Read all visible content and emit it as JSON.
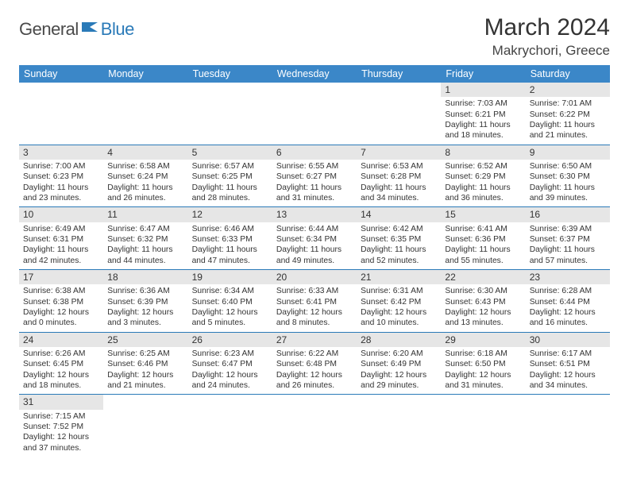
{
  "logo": {
    "part1": "General",
    "part2": "Blue"
  },
  "title": "March 2024",
  "location": "Makrychori, Greece",
  "colors": {
    "header_bg": "#3b87c8",
    "header_text": "#ffffff",
    "border": "#2a7ab8",
    "daynum_bg": "#e6e6e6",
    "logo_blue": "#2a7ab8",
    "logo_gray": "#4a4a4a"
  },
  "weekdays": [
    "Sunday",
    "Monday",
    "Tuesday",
    "Wednesday",
    "Thursday",
    "Friday",
    "Saturday"
  ],
  "weeks": [
    [
      {
        "empty": true
      },
      {
        "empty": true
      },
      {
        "empty": true
      },
      {
        "empty": true
      },
      {
        "empty": true
      },
      {
        "day": "1",
        "sunrise": "7:03 AM",
        "sunset": "6:21 PM",
        "daylight": "11 hours and 18 minutes."
      },
      {
        "day": "2",
        "sunrise": "7:01 AM",
        "sunset": "6:22 PM",
        "daylight": "11 hours and 21 minutes."
      }
    ],
    [
      {
        "day": "3",
        "sunrise": "7:00 AM",
        "sunset": "6:23 PM",
        "daylight": "11 hours and 23 minutes."
      },
      {
        "day": "4",
        "sunrise": "6:58 AM",
        "sunset": "6:24 PM",
        "daylight": "11 hours and 26 minutes."
      },
      {
        "day": "5",
        "sunrise": "6:57 AM",
        "sunset": "6:25 PM",
        "daylight": "11 hours and 28 minutes."
      },
      {
        "day": "6",
        "sunrise": "6:55 AM",
        "sunset": "6:27 PM",
        "daylight": "11 hours and 31 minutes."
      },
      {
        "day": "7",
        "sunrise": "6:53 AM",
        "sunset": "6:28 PM",
        "daylight": "11 hours and 34 minutes."
      },
      {
        "day": "8",
        "sunrise": "6:52 AM",
        "sunset": "6:29 PM",
        "daylight": "11 hours and 36 minutes."
      },
      {
        "day": "9",
        "sunrise": "6:50 AM",
        "sunset": "6:30 PM",
        "daylight": "11 hours and 39 minutes."
      }
    ],
    [
      {
        "day": "10",
        "sunrise": "6:49 AM",
        "sunset": "6:31 PM",
        "daylight": "11 hours and 42 minutes."
      },
      {
        "day": "11",
        "sunrise": "6:47 AM",
        "sunset": "6:32 PM",
        "daylight": "11 hours and 44 minutes."
      },
      {
        "day": "12",
        "sunrise": "6:46 AM",
        "sunset": "6:33 PM",
        "daylight": "11 hours and 47 minutes."
      },
      {
        "day": "13",
        "sunrise": "6:44 AM",
        "sunset": "6:34 PM",
        "daylight": "11 hours and 49 minutes."
      },
      {
        "day": "14",
        "sunrise": "6:42 AM",
        "sunset": "6:35 PM",
        "daylight": "11 hours and 52 minutes."
      },
      {
        "day": "15",
        "sunrise": "6:41 AM",
        "sunset": "6:36 PM",
        "daylight": "11 hours and 55 minutes."
      },
      {
        "day": "16",
        "sunrise": "6:39 AM",
        "sunset": "6:37 PM",
        "daylight": "11 hours and 57 minutes."
      }
    ],
    [
      {
        "day": "17",
        "sunrise": "6:38 AM",
        "sunset": "6:38 PM",
        "daylight": "12 hours and 0 minutes."
      },
      {
        "day": "18",
        "sunrise": "6:36 AM",
        "sunset": "6:39 PM",
        "daylight": "12 hours and 3 minutes."
      },
      {
        "day": "19",
        "sunrise": "6:34 AM",
        "sunset": "6:40 PM",
        "daylight": "12 hours and 5 minutes."
      },
      {
        "day": "20",
        "sunrise": "6:33 AM",
        "sunset": "6:41 PM",
        "daylight": "12 hours and 8 minutes."
      },
      {
        "day": "21",
        "sunrise": "6:31 AM",
        "sunset": "6:42 PM",
        "daylight": "12 hours and 10 minutes."
      },
      {
        "day": "22",
        "sunrise": "6:30 AM",
        "sunset": "6:43 PM",
        "daylight": "12 hours and 13 minutes."
      },
      {
        "day": "23",
        "sunrise": "6:28 AM",
        "sunset": "6:44 PM",
        "daylight": "12 hours and 16 minutes."
      }
    ],
    [
      {
        "day": "24",
        "sunrise": "6:26 AM",
        "sunset": "6:45 PM",
        "daylight": "12 hours and 18 minutes."
      },
      {
        "day": "25",
        "sunrise": "6:25 AM",
        "sunset": "6:46 PM",
        "daylight": "12 hours and 21 minutes."
      },
      {
        "day": "26",
        "sunrise": "6:23 AM",
        "sunset": "6:47 PM",
        "daylight": "12 hours and 24 minutes."
      },
      {
        "day": "27",
        "sunrise": "6:22 AM",
        "sunset": "6:48 PM",
        "daylight": "12 hours and 26 minutes."
      },
      {
        "day": "28",
        "sunrise": "6:20 AM",
        "sunset": "6:49 PM",
        "daylight": "12 hours and 29 minutes."
      },
      {
        "day": "29",
        "sunrise": "6:18 AM",
        "sunset": "6:50 PM",
        "daylight": "12 hours and 31 minutes."
      },
      {
        "day": "30",
        "sunrise": "6:17 AM",
        "sunset": "6:51 PM",
        "daylight": "12 hours and 34 minutes."
      }
    ],
    [
      {
        "day": "31",
        "sunrise": "7:15 AM",
        "sunset": "7:52 PM",
        "daylight": "12 hours and 37 minutes."
      },
      {
        "empty": true
      },
      {
        "empty": true
      },
      {
        "empty": true
      },
      {
        "empty": true
      },
      {
        "empty": true
      },
      {
        "empty": true
      }
    ]
  ],
  "labels": {
    "sunrise": "Sunrise:",
    "sunset": "Sunset:",
    "daylight": "Daylight:"
  }
}
